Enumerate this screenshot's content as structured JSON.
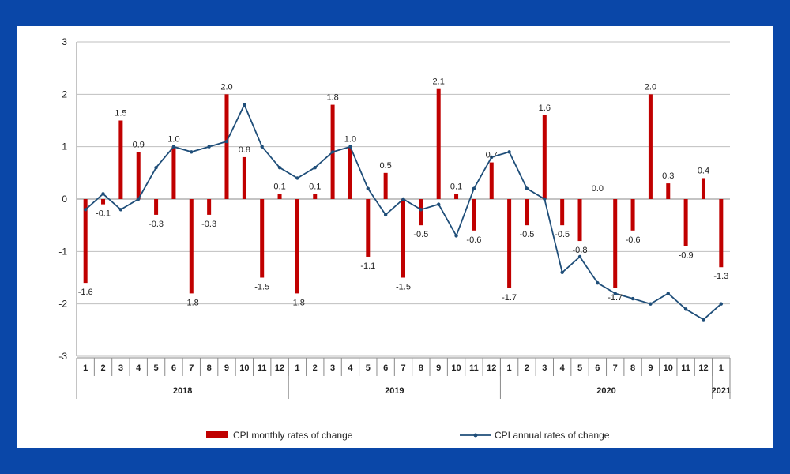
{
  "chart_data": {
    "type": "bar",
    "title": "",
    "xlabel": "",
    "ylabel": "",
    "ylim": [
      -3,
      3
    ],
    "yticks": [
      3,
      2,
      1,
      0,
      -1,
      -2,
      -3
    ],
    "grid": true,
    "legend_position": "bottom",
    "categories": [
      "1",
      "2",
      "3",
      "4",
      "5",
      "6",
      "7",
      "8",
      "9",
      "10",
      "11",
      "12",
      "1",
      "2",
      "3",
      "4",
      "5",
      "6",
      "7",
      "8",
      "9",
      "10",
      "11",
      "12",
      "1",
      "2",
      "3",
      "4",
      "5",
      "6",
      "7",
      "8",
      "9",
      "10",
      "11",
      "12",
      "1"
    ],
    "years": [
      {
        "label": "2018",
        "start": 0,
        "count": 12
      },
      {
        "label": "2019",
        "start": 12,
        "count": 12
      },
      {
        "label": "2020",
        "start": 24,
        "count": 12
      },
      {
        "label": "2021",
        "start": 36,
        "count": 1
      }
    ],
    "series": [
      {
        "name": "CPI monthly rates of change",
        "type": "bar",
        "color": "#c00000",
        "values": [
          -1.6,
          -0.1,
          1.5,
          0.9,
          -0.3,
          1.0,
          -1.8,
          -0.3,
          2.0,
          0.8,
          -1.5,
          0.1,
          -1.8,
          0.1,
          1.8,
          1.0,
          -1.1,
          0.5,
          -1.5,
          -0.5,
          2.1,
          0.1,
          -0.6,
          0.7,
          -1.7,
          -0.5,
          1.6,
          -0.5,
          -0.8,
          0.0,
          -1.7,
          -0.6,
          2.0,
          0.3,
          -0.9,
          0.4,
          -1.3
        ],
        "labels": [
          "-1.6",
          "-0.1",
          "1.5",
          "0.9",
          "-0.3",
          "1.0",
          "-1.8",
          "-0.3",
          "2.0",
          "0.8",
          "-1.5",
          "0.1",
          "-1.8",
          "0.1",
          "1.8",
          "1.0",
          "-1.1",
          "0.5",
          "-1.5",
          "-0.5",
          "2.1",
          "0.1",
          "-0.6",
          "0.7",
          "-1.7",
          "-0.5",
          "1.6",
          "-0.5",
          "-0.8",
          "0.0",
          "-1.7",
          "-0.6",
          "2.0",
          "0.3",
          "-0.9",
          "0.4",
          "-1.3"
        ]
      },
      {
        "name": "CPI annual rates of change",
        "type": "line",
        "color": "#1f4e79",
        "values": [
          -0.2,
          0.1,
          -0.2,
          0.0,
          0.6,
          1.0,
          0.9,
          1.0,
          1.1,
          1.8,
          1.0,
          0.6,
          0.4,
          0.6,
          0.9,
          1.0,
          0.2,
          -0.3,
          0.0,
          -0.2,
          -0.1,
          -0.7,
          0.2,
          0.8,
          0.9,
          0.2,
          0.0,
          -1.4,
          -1.1,
          -1.6,
          -1.8,
          -1.9,
          -2.0,
          -1.8,
          -2.1,
          -2.3,
          -2.0
        ]
      }
    ]
  }
}
